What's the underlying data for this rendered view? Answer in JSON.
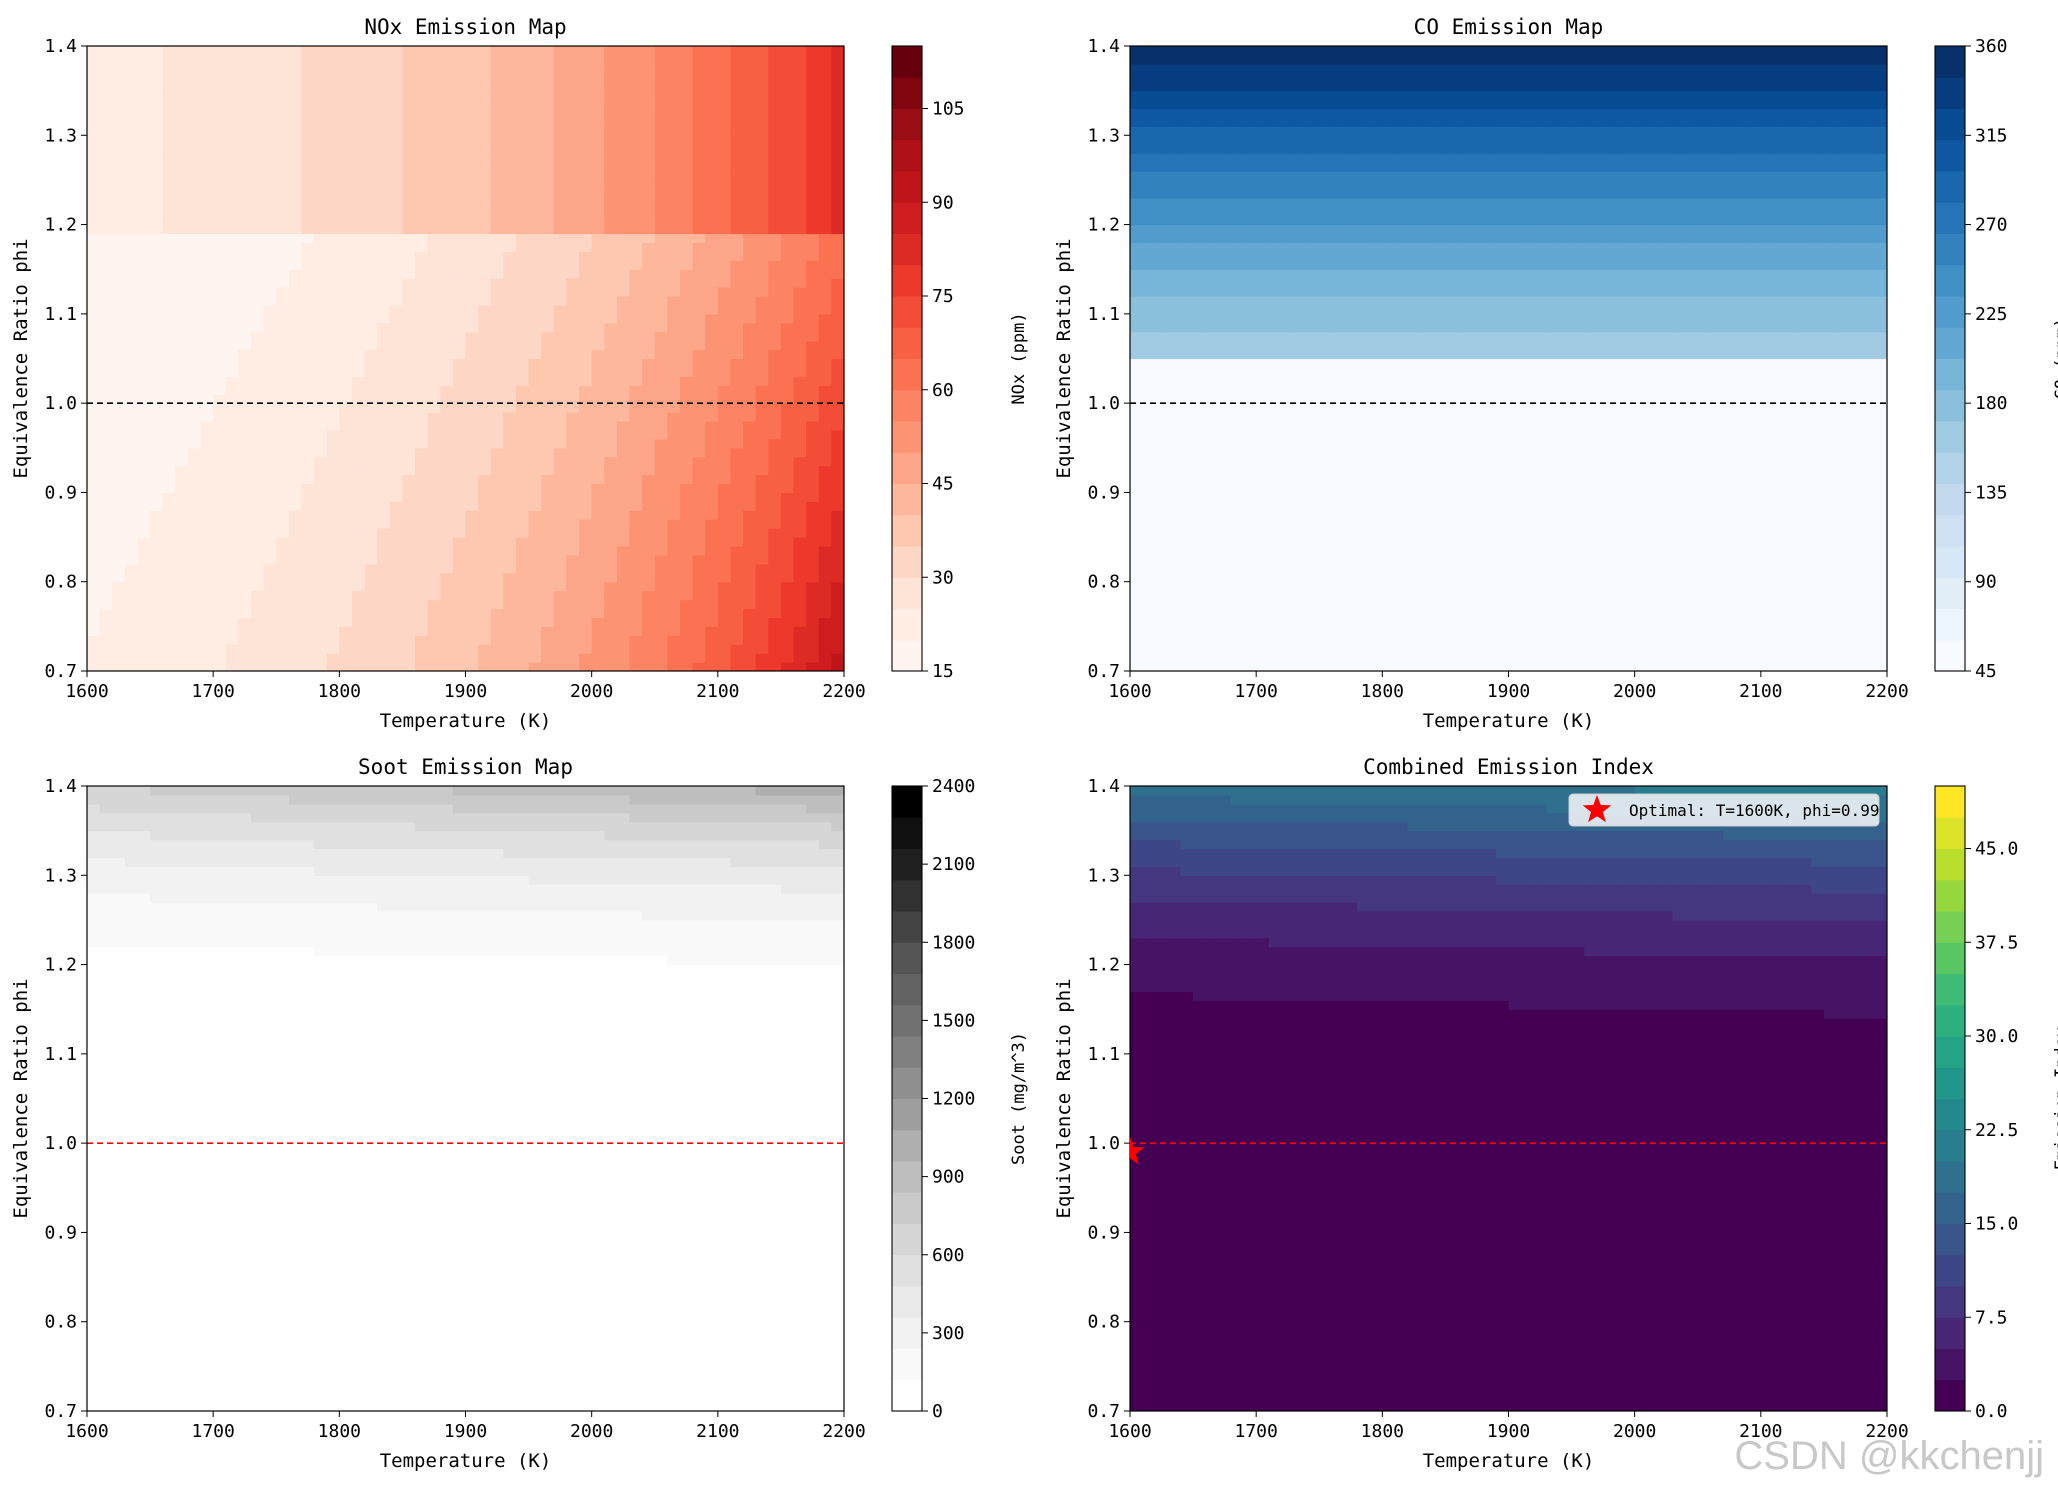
{
  "colors": {
    "reds": [
      "#fff5f0",
      "#fee0d2",
      "#fcbba1",
      "#fc9272",
      "#fb6a4a",
      "#ef3b2c",
      "#cb181d",
      "#a50f15",
      "#67000d"
    ],
    "blues": [
      "#f7fbff",
      "#deebf7",
      "#c6dbef",
      "#9ecae1",
      "#6baed6",
      "#4292c6",
      "#2171b5",
      "#08519c",
      "#08306b"
    ],
    "greys": [
      "#ffffff",
      "#f0f0f0",
      "#d9d9d9",
      "#bdbdbd",
      "#969696",
      "#737373",
      "#525252",
      "#252525",
      "#000000"
    ],
    "viridis": [
      "#440154",
      "#482878",
      "#3e4989",
      "#31688e",
      "#26828e",
      "#1f9e89",
      "#35b779",
      "#6ece58",
      "#b5de2b",
      "#fde725"
    ],
    "optimal_marker": "#ff0000"
  },
  "watermark": "CSDN @kkchenjj",
  "chart_data": [
    {
      "id": "nox",
      "type": "heatmap",
      "title": "NOx Emission Map",
      "xlabel": "Temperature (K)",
      "ylabel": "Equivalence Ratio phi",
      "xlim": [
        1600,
        2200
      ],
      "ylim": [
        0.7,
        1.4
      ],
      "xticks": [
        1600,
        1700,
        1800,
        1900,
        2000,
        2100,
        2200
      ],
      "yticks": [
        0.7,
        0.8,
        0.9,
        1.0,
        1.1,
        1.2,
        1.3,
        1.4
      ],
      "xtick_labels": [
        "1600",
        "1700",
        "1800",
        "1900",
        "2000",
        "2100",
        "2200"
      ],
      "ytick_labels": [
        "0.7",
        "0.8",
        "0.9",
        "1.0",
        "1.1",
        "1.2",
        "1.3",
        "1.4"
      ],
      "colormap": "reds",
      "colorbar": {
        "label": "NOx (ppm)",
        "min": 15,
        "max": 115,
        "levels": 20,
        "ticks": [
          15,
          30,
          45,
          60,
          75,
          90,
          105
        ],
        "tick_labels": [
          "15",
          "30",
          "45",
          "60",
          "75",
          "90",
          "105"
        ]
      },
      "stoich_line": {
        "phi": 1.0,
        "color": "#000000",
        "style": "dashed"
      },
      "field": "nox"
    },
    {
      "id": "co",
      "type": "heatmap",
      "title": "CO Emission Map",
      "xlabel": "Temperature (K)",
      "ylabel": "Equivalence Ratio phi",
      "xlim": [
        1600,
        2200
      ],
      "ylim": [
        0.7,
        1.4
      ],
      "xticks": [
        1600,
        1700,
        1800,
        1900,
        2000,
        2100,
        2200
      ],
      "yticks": [
        0.7,
        0.8,
        0.9,
        1.0,
        1.1,
        1.2,
        1.3,
        1.4
      ],
      "xtick_labels": [
        "1600",
        "1700",
        "1800",
        "1900",
        "2000",
        "2100",
        "2200"
      ],
      "ytick_labels": [
        "0.7",
        "0.8",
        "0.9",
        "1.0",
        "1.1",
        "1.2",
        "1.3",
        "1.4"
      ],
      "colormap": "blues",
      "colorbar": {
        "label": "CO (ppm)",
        "min": 45,
        "max": 360,
        "levels": 20,
        "ticks": [
          45,
          90,
          135,
          180,
          225,
          270,
          315,
          360
        ],
        "tick_labels": [
          "45",
          "90",
          "135",
          "180",
          "225",
          "270",
          "315",
          "360"
        ]
      },
      "stoich_line": {
        "phi": 1.0,
        "color": "#000000",
        "style": "dashed"
      },
      "field": "co"
    },
    {
      "id": "soot",
      "type": "heatmap",
      "title": "Soot Emission Map",
      "xlabel": "Temperature (K)",
      "ylabel": "Equivalence Ratio phi",
      "xlim": [
        1600,
        2200
      ],
      "ylim": [
        0.7,
        1.4
      ],
      "xticks": [
        1600,
        1700,
        1800,
        1900,
        2000,
        2100,
        2200
      ],
      "yticks": [
        0.7,
        0.8,
        0.9,
        1.0,
        1.1,
        1.2,
        1.3,
        1.4
      ],
      "xtick_labels": [
        "1600",
        "1700",
        "1800",
        "1900",
        "2000",
        "2100",
        "2200"
      ],
      "ytick_labels": [
        "0.7",
        "0.8",
        "0.9",
        "1.0",
        "1.1",
        "1.2",
        "1.3",
        "1.4"
      ],
      "colormap": "greys",
      "colorbar": {
        "label": "Soot (mg/m^3)",
        "min": 0,
        "max": 2400,
        "levels": 20,
        "ticks": [
          0,
          300,
          600,
          900,
          1200,
          1500,
          1800,
          2100,
          2400
        ],
        "tick_labels": [
          "0",
          "300",
          "600",
          "900",
          "1200",
          "1500",
          "1800",
          "2100",
          "2400"
        ]
      },
      "stoich_line": {
        "phi": 1.0,
        "color": "#ff0000",
        "style": "dashed"
      },
      "field": "soot"
    },
    {
      "id": "combined",
      "type": "heatmap",
      "title": "Combined Emission Index",
      "xlabel": "Temperature (K)",
      "ylabel": "Equivalence Ratio phi",
      "xlim": [
        1600,
        2200
      ],
      "ylim": [
        0.7,
        1.4
      ],
      "xticks": [
        1600,
        1700,
        1800,
        1900,
        2000,
        2100,
        2200
      ],
      "yticks": [
        0.7,
        0.8,
        0.9,
        1.0,
        1.1,
        1.2,
        1.3,
        1.4
      ],
      "xtick_labels": [
        "1600",
        "1700",
        "1800",
        "1900",
        "2000",
        "2100",
        "2200"
      ],
      "ytick_labels": [
        "0.7",
        "0.8",
        "0.9",
        "1.0",
        "1.1",
        "1.2",
        "1.3",
        "1.4"
      ],
      "colormap": "viridis",
      "colorbar": {
        "label": "Emission Index",
        "min": 0,
        "max": 50,
        "levels": 20,
        "ticks": [
          0,
          7.5,
          15,
          22.5,
          30,
          37.5,
          45
        ],
        "tick_labels": [
          "0.0",
          "7.5",
          "15.0",
          "22.5",
          "30.0",
          "37.5",
          "45.0"
        ]
      },
      "stoich_line": {
        "phi": 1.0,
        "color": "#ff0000",
        "style": "dashed"
      },
      "optimal_point": {
        "T": 1600,
        "phi": 0.99
      },
      "legend": {
        "label": "Optimal: T=1600K, phi=0.99",
        "position": "upper right"
      },
      "field": "combined"
    }
  ]
}
